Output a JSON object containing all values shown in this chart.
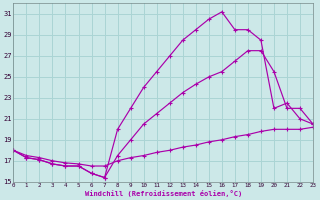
{
  "xlabel": "Windchill (Refroidissement éolien,°C)",
  "bg_color": "#cce8e8",
  "grid_color": "#aad4d4",
  "line_color": "#aa00aa",
  "xlim": [
    0,
    23
  ],
  "ylim": [
    15,
    32
  ],
  "yticks": [
    15,
    17,
    19,
    21,
    23,
    25,
    27,
    29,
    31
  ],
  "xticks": [
    0,
    1,
    2,
    3,
    4,
    5,
    6,
    7,
    8,
    9,
    10,
    11,
    12,
    13,
    14,
    15,
    16,
    17,
    18,
    19,
    20,
    21,
    22,
    23
  ],
  "series1_x": [
    0,
    1,
    2,
    3,
    4,
    5,
    6,
    7,
    8,
    9,
    10,
    11,
    12,
    13,
    14,
    15,
    16,
    17,
    18,
    19,
    20,
    21,
    22,
    23
  ],
  "series1_y": [
    18.0,
    17.3,
    17.1,
    16.7,
    16.5,
    16.5,
    15.8,
    15.4,
    20.0,
    22.0,
    24.0,
    25.5,
    27.0,
    28.5,
    29.5,
    30.5,
    31.2,
    29.5,
    29.5,
    28.5,
    22.0,
    22.5,
    21.0,
    20.5
  ],
  "series2_x": [
    0,
    1,
    2,
    3,
    4,
    5,
    6,
    7,
    8,
    9,
    10,
    11,
    12,
    13,
    14,
    15,
    16,
    17,
    18,
    19,
    20,
    21,
    22,
    23
  ],
  "series2_y": [
    18.0,
    17.5,
    17.3,
    17.0,
    16.8,
    16.7,
    16.5,
    16.5,
    17.0,
    17.3,
    17.5,
    17.8,
    18.0,
    18.3,
    18.5,
    18.8,
    19.0,
    19.3,
    19.5,
    19.8,
    20.0,
    20.0,
    20.0,
    20.2
  ],
  "series3_x": [
    0,
    1,
    2,
    3,
    4,
    5,
    6,
    7,
    8,
    9,
    10,
    11,
    12,
    13,
    14,
    15,
    16,
    17,
    18,
    19,
    20,
    21,
    22,
    23
  ],
  "series3_y": [
    18.0,
    17.3,
    17.1,
    16.7,
    16.5,
    16.5,
    15.8,
    15.4,
    17.5,
    19.0,
    20.5,
    21.5,
    22.5,
    23.5,
    24.3,
    25.0,
    25.5,
    26.5,
    27.5,
    27.5,
    25.5,
    22.0,
    22.0,
    20.5
  ]
}
